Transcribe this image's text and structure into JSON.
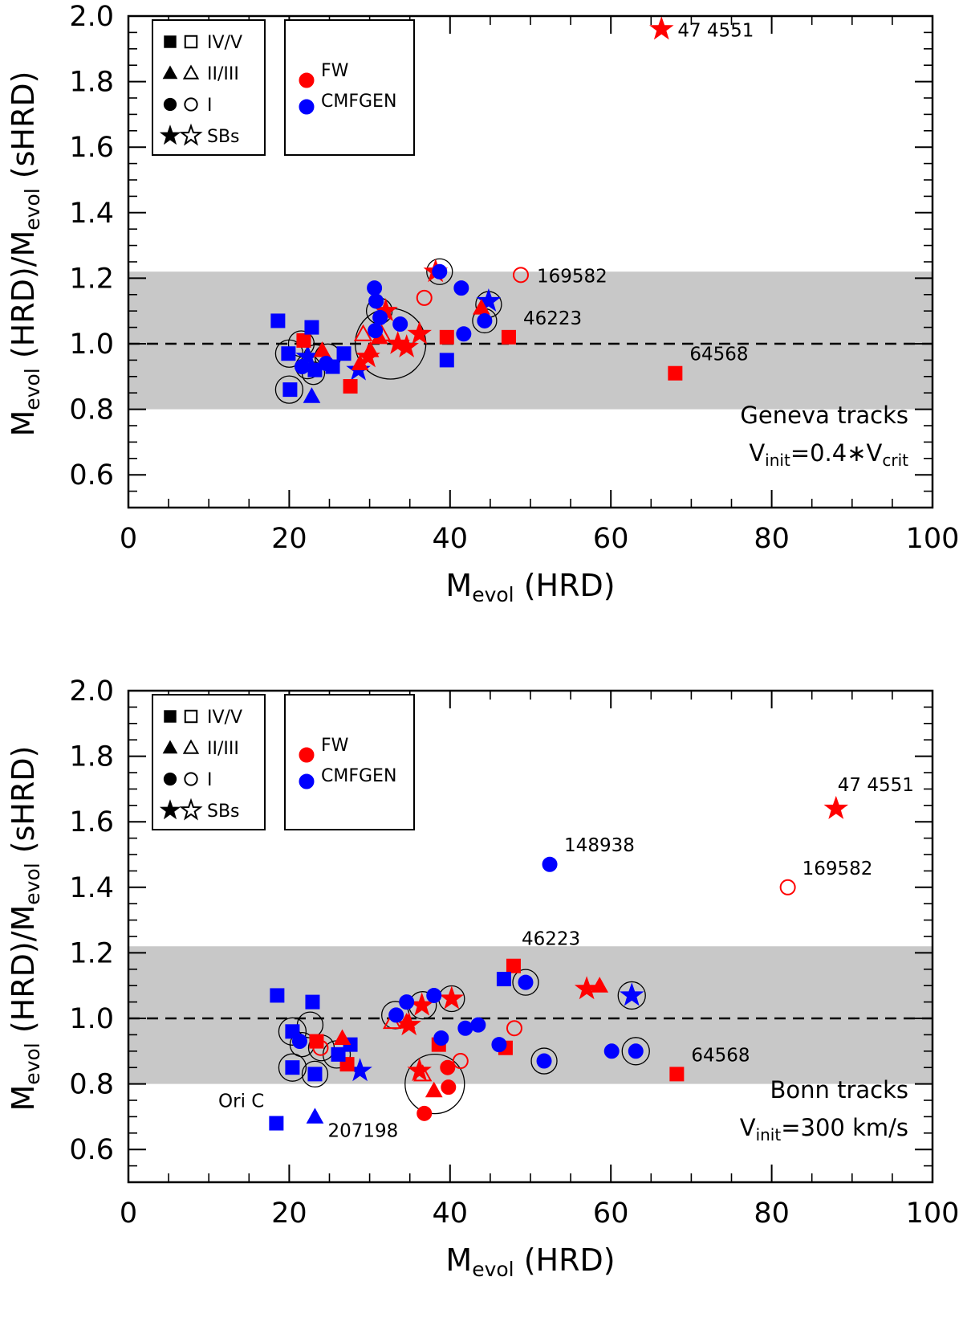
{
  "chart_data": [
    {
      "type": "scatter",
      "track_label": "Geneva tracks",
      "vinit": {
        "lead": "V",
        "sub": "init",
        "mid": "=0.4∗V",
        "sub2": "crit",
        "tail": ""
      },
      "xlabel": {
        "main": "M",
        "sub": "evol",
        "rest": " (HRD)"
      },
      "ylabel": {
        "m1": "M",
        "s1": "evol",
        "r1": " (HRD)/M",
        "s2": "evol",
        "r2": " (sHRD)"
      },
      "xlim": [
        0,
        100
      ],
      "ylim": [
        0.5,
        2.0
      ],
      "xticks": [
        0,
        20,
        40,
        60,
        80,
        100
      ],
      "yticks": [
        0.6,
        0.8,
        1.0,
        1.2,
        1.4,
        1.6,
        1.8,
        2.0
      ],
      "band": [
        0.8,
        1.22
      ],
      "ref_line": 1.0,
      "points": [
        {
          "x": 66.3,
          "y": 1.96,
          "c": "red",
          "m": "star",
          "f": true
        },
        {
          "x": 38.2,
          "y": 1.22,
          "c": "red",
          "m": "star",
          "f": true
        },
        {
          "x": 32.0,
          "y": 1.1,
          "c": "red",
          "m": "star",
          "f": true
        },
        {
          "x": 33.5,
          "y": 1.0,
          "c": "red",
          "m": "star",
          "f": true
        },
        {
          "x": 34.6,
          "y": 0.99,
          "c": "red",
          "m": "star",
          "f": true
        },
        {
          "x": 36.2,
          "y": 1.03,
          "c": "red",
          "m": "star",
          "f": true
        },
        {
          "x": 29.8,
          "y": 0.96,
          "c": "red",
          "m": "star",
          "f": true
        },
        {
          "x": 44.8,
          "y": 1.13,
          "c": "blue",
          "m": "star",
          "f": true
        },
        {
          "x": 28.6,
          "y": 0.92,
          "c": "blue",
          "m": "star",
          "f": true
        },
        {
          "x": 22.3,
          "y": 0.96,
          "c": "blue",
          "m": "star",
          "f": true
        },
        {
          "x": 47.3,
          "y": 1.02,
          "c": "red",
          "m": "square",
          "f": true
        },
        {
          "x": 68.0,
          "y": 0.91,
          "c": "red",
          "m": "square",
          "f": true
        },
        {
          "x": 39.6,
          "y": 1.02,
          "c": "red",
          "m": "square",
          "f": true
        },
        {
          "x": 27.6,
          "y": 0.87,
          "c": "red",
          "m": "square",
          "f": true
        },
        {
          "x": 21.8,
          "y": 1.01,
          "c": "red",
          "m": "square",
          "f": true
        },
        {
          "x": 18.6,
          "y": 1.07,
          "c": "blue",
          "m": "square",
          "f": true
        },
        {
          "x": 22.8,
          "y": 1.05,
          "c": "blue",
          "m": "square",
          "f": true
        },
        {
          "x": 20.1,
          "y": 0.86,
          "c": "blue",
          "m": "square",
          "f": true
        },
        {
          "x": 39.6,
          "y": 0.95,
          "c": "blue",
          "m": "square",
          "f": true
        },
        {
          "x": 26.8,
          "y": 0.97,
          "c": "blue",
          "m": "square",
          "f": true
        },
        {
          "x": 25.4,
          "y": 0.93,
          "c": "blue",
          "m": "square",
          "f": true
        },
        {
          "x": 19.9,
          "y": 0.97,
          "c": "blue",
          "m": "square",
          "f": true
        },
        {
          "x": 23.2,
          "y": 0.92,
          "c": "blue",
          "m": "square",
          "f": true
        },
        {
          "x": 22.8,
          "y": 0.84,
          "c": "blue",
          "m": "triangle",
          "f": true
        },
        {
          "x": 24.1,
          "y": 0.98,
          "c": "red",
          "m": "triangle",
          "f": true
        },
        {
          "x": 31.2,
          "y": 1.02,
          "c": "red",
          "m": "triangle",
          "f": true
        },
        {
          "x": 43.9,
          "y": 1.11,
          "c": "red",
          "m": "triangle",
          "f": true
        },
        {
          "x": 28.8,
          "y": 0.94,
          "c": "red",
          "m": "triangle",
          "f": true
        },
        {
          "x": 30.1,
          "y": 0.98,
          "c": "red",
          "m": "triangle",
          "f": true
        },
        {
          "x": 31.5,
          "y": 1.03,
          "c": "red",
          "m": "triangle",
          "f": false
        },
        {
          "x": 29.2,
          "y": 1.03,
          "c": "red",
          "m": "triangle",
          "f": false
        },
        {
          "x": 48.8,
          "y": 1.21,
          "c": "red",
          "m": "circle",
          "f": false
        },
        {
          "x": 36.8,
          "y": 1.14,
          "c": "red",
          "m": "circle",
          "f": false
        },
        {
          "x": 30.6,
          "y": 1.17,
          "c": "blue",
          "m": "circle",
          "f": true
        },
        {
          "x": 30.8,
          "y": 1.13,
          "c": "blue",
          "m": "circle",
          "f": true
        },
        {
          "x": 31.3,
          "y": 1.08,
          "c": "blue",
          "m": "circle",
          "f": true
        },
        {
          "x": 38.7,
          "y": 1.22,
          "c": "blue",
          "m": "circle",
          "f": true
        },
        {
          "x": 41.4,
          "y": 1.17,
          "c": "blue",
          "m": "circle",
          "f": true
        },
        {
          "x": 41.7,
          "y": 1.03,
          "c": "blue",
          "m": "circle",
          "f": true
        },
        {
          "x": 44.3,
          "y": 1.07,
          "c": "blue",
          "m": "circle",
          "f": true
        },
        {
          "x": 30.7,
          "y": 1.04,
          "c": "blue",
          "m": "circle",
          "f": true
        },
        {
          "x": 33.8,
          "y": 1.06,
          "c": "blue",
          "m": "circle",
          "f": true
        },
        {
          "x": 24.6,
          "y": 0.94,
          "c": "blue",
          "m": "circle",
          "f": true
        },
        {
          "x": 21.6,
          "y": 0.93,
          "c": "blue",
          "m": "circle",
          "f": true
        }
      ],
      "rings": [
        {
          "x": 20.0,
          "y": 0.97,
          "r": 17
        },
        {
          "x": 21.5,
          "y": 1.0,
          "r": 16
        },
        {
          "x": 23.3,
          "y": 0.96,
          "r": 15
        },
        {
          "x": 22.3,
          "y": 0.93,
          "r": 15
        },
        {
          "x": 24.8,
          "y": 0.96,
          "r": 16
        },
        {
          "x": 23.0,
          "y": 0.91,
          "r": 14
        },
        {
          "x": 20.0,
          "y": 0.86,
          "r": 17
        },
        {
          "x": 31.2,
          "y": 1.1,
          "r": 16
        },
        {
          "x": 32.6,
          "y": 1.0,
          "r": 44
        },
        {
          "x": 38.7,
          "y": 1.22,
          "r": 16
        },
        {
          "x": 44.8,
          "y": 1.12,
          "r": 16
        },
        {
          "x": 44.3,
          "y": 1.07,
          "r": 15
        }
      ],
      "labels": [
        {
          "x": 66.3,
          "y": 1.96,
          "text": "47 4551",
          "pos": "right"
        },
        {
          "x": 48.8,
          "y": 1.21,
          "text": "169582",
          "pos": "right"
        },
        {
          "x": 47.3,
          "y": 1.02,
          "text": "46223",
          "pos": "upright"
        },
        {
          "x": 68.0,
          "y": 0.91,
          "text": "64568",
          "pos": "upright"
        }
      ]
    },
    {
      "type": "scatter",
      "track_label": "Bonn tracks",
      "vinit": {
        "lead": "V",
        "sub": "init",
        "mid": "=300 km/s",
        "sub2": "",
        "tail": ""
      },
      "xlabel": {
        "main": "M",
        "sub": "evol",
        "rest": " (HRD)"
      },
      "ylabel": {
        "m1": "M",
        "s1": "evol",
        "r1": " (HRD)/M",
        "s2": "evol",
        "r2": " (sHRD)"
      },
      "xlim": [
        0,
        100
      ],
      "ylim": [
        0.5,
        2.0
      ],
      "xticks": [
        0,
        20,
        40,
        60,
        80,
        100
      ],
      "yticks": [
        0.6,
        0.8,
        1.0,
        1.2,
        1.4,
        1.6,
        1.8,
        2.0
      ],
      "band": [
        0.8,
        1.22
      ],
      "ref_line": 1.0,
      "points": [
        {
          "x": 88.0,
          "y": 1.64,
          "c": "red",
          "m": "star",
          "f": true
        },
        {
          "x": 57.0,
          "y": 1.09,
          "c": "red",
          "m": "star",
          "f": true
        },
        {
          "x": 40.2,
          "y": 1.06,
          "c": "red",
          "m": "star",
          "f": true
        },
        {
          "x": 36.5,
          "y": 1.04,
          "c": "red",
          "m": "star",
          "f": true
        },
        {
          "x": 34.9,
          "y": 0.98,
          "c": "red",
          "m": "star",
          "f": true
        },
        {
          "x": 36.2,
          "y": 0.84,
          "c": "red",
          "m": "star",
          "f": true
        },
        {
          "x": 62.6,
          "y": 1.07,
          "c": "blue",
          "m": "star",
          "f": true
        },
        {
          "x": 28.8,
          "y": 0.84,
          "c": "blue",
          "m": "star",
          "f": true
        },
        {
          "x": 47.9,
          "y": 1.16,
          "c": "red",
          "m": "square",
          "f": true
        },
        {
          "x": 68.2,
          "y": 0.83,
          "c": "red",
          "m": "square",
          "f": true
        },
        {
          "x": 38.6,
          "y": 0.92,
          "c": "red",
          "m": "square",
          "f": true
        },
        {
          "x": 46.9,
          "y": 0.91,
          "c": "red",
          "m": "square",
          "f": true
        },
        {
          "x": 23.4,
          "y": 0.93,
          "c": "red",
          "m": "square",
          "f": true
        },
        {
          "x": 27.2,
          "y": 0.86,
          "c": "red",
          "m": "square",
          "f": true
        },
        {
          "x": 18.5,
          "y": 1.07,
          "c": "blue",
          "m": "square",
          "f": true
        },
        {
          "x": 22.9,
          "y": 1.05,
          "c": "blue",
          "m": "square",
          "f": true
        },
        {
          "x": 46.7,
          "y": 1.12,
          "c": "blue",
          "m": "square",
          "f": true
        },
        {
          "x": 20.4,
          "y": 0.96,
          "c": "blue",
          "m": "square",
          "f": true
        },
        {
          "x": 27.6,
          "y": 0.92,
          "c": "blue",
          "m": "square",
          "f": true
        },
        {
          "x": 26.1,
          "y": 0.89,
          "c": "blue",
          "m": "square",
          "f": true
        },
        {
          "x": 20.4,
          "y": 0.85,
          "c": "blue",
          "m": "square",
          "f": true
        },
        {
          "x": 23.2,
          "y": 0.83,
          "c": "blue",
          "m": "square",
          "f": true
        },
        {
          "x": 18.4,
          "y": 0.68,
          "c": "blue",
          "m": "square",
          "f": true
        },
        {
          "x": 23.2,
          "y": 0.7,
          "c": "blue",
          "m": "triangle",
          "f": true
        },
        {
          "x": 58.6,
          "y": 1.1,
          "c": "red",
          "m": "triangle",
          "f": true
        },
        {
          "x": 26.6,
          "y": 0.94,
          "c": "red",
          "m": "triangle",
          "f": true
        },
        {
          "x": 38.0,
          "y": 0.78,
          "c": "red",
          "m": "triangle",
          "f": true
        },
        {
          "x": 34.6,
          "y": 0.99,
          "c": "red",
          "m": "triangle",
          "f": true
        },
        {
          "x": 36.6,
          "y": 0.83,
          "c": "red",
          "m": "triangle",
          "f": false
        },
        {
          "x": 32.8,
          "y": 0.99,
          "c": "red",
          "m": "triangle",
          "f": false
        },
        {
          "x": 82.0,
          "y": 1.4,
          "c": "red",
          "m": "circle",
          "f": false
        },
        {
          "x": 48.0,
          "y": 0.97,
          "c": "red",
          "m": "circle",
          "f": false
        },
        {
          "x": 41.3,
          "y": 0.87,
          "c": "red",
          "m": "circle",
          "f": false
        },
        {
          "x": 23.9,
          "y": 0.91,
          "c": "red",
          "m": "circle",
          "f": false
        },
        {
          "x": 36.8,
          "y": 0.71,
          "c": "red",
          "m": "circle",
          "f": true
        },
        {
          "x": 39.7,
          "y": 0.85,
          "c": "red",
          "m": "circle",
          "f": true
        },
        {
          "x": 39.8,
          "y": 0.79,
          "c": "red",
          "m": "circle",
          "f": true
        },
        {
          "x": 52.4,
          "y": 1.47,
          "c": "blue",
          "m": "circle",
          "f": true
        },
        {
          "x": 49.4,
          "y": 1.11,
          "c": "blue",
          "m": "circle",
          "f": true
        },
        {
          "x": 38.0,
          "y": 1.07,
          "c": "blue",
          "m": "circle",
          "f": true
        },
        {
          "x": 34.6,
          "y": 1.05,
          "c": "blue",
          "m": "circle",
          "f": true
        },
        {
          "x": 38.9,
          "y": 0.94,
          "c": "blue",
          "m": "circle",
          "f": true
        },
        {
          "x": 41.9,
          "y": 0.97,
          "c": "blue",
          "m": "circle",
          "f": true
        },
        {
          "x": 43.5,
          "y": 0.98,
          "c": "blue",
          "m": "circle",
          "f": true
        },
        {
          "x": 46.1,
          "y": 0.92,
          "c": "blue",
          "m": "circle",
          "f": true
        },
        {
          "x": 51.7,
          "y": 0.87,
          "c": "blue",
          "m": "circle",
          "f": true
        },
        {
          "x": 60.1,
          "y": 0.9,
          "c": "blue",
          "m": "circle",
          "f": true
        },
        {
          "x": 63.1,
          "y": 0.9,
          "c": "blue",
          "m": "circle",
          "f": true
        },
        {
          "x": 21.3,
          "y": 0.93,
          "c": "blue",
          "m": "circle",
          "f": true
        },
        {
          "x": 33.3,
          "y": 1.01,
          "c": "blue",
          "m": "circle",
          "f": true
        }
      ],
      "rings": [
        {
          "x": 20.4,
          "y": 0.96,
          "r": 17
        },
        {
          "x": 22.6,
          "y": 0.98,
          "r": 16
        },
        {
          "x": 21.6,
          "y": 0.92,
          "r": 15
        },
        {
          "x": 24.0,
          "y": 0.91,
          "r": 16
        },
        {
          "x": 25.9,
          "y": 0.89,
          "r": 17
        },
        {
          "x": 20.4,
          "y": 0.85,
          "r": 17
        },
        {
          "x": 23.2,
          "y": 0.83,
          "r": 16
        },
        {
          "x": 33.2,
          "y": 1.01,
          "r": 17
        },
        {
          "x": 36.6,
          "y": 1.04,
          "r": 17
        },
        {
          "x": 40.2,
          "y": 1.06,
          "r": 16
        },
        {
          "x": 49.4,
          "y": 1.11,
          "r": 16
        },
        {
          "x": 62.6,
          "y": 1.07,
          "r": 17
        },
        {
          "x": 51.7,
          "y": 0.87,
          "r": 16
        },
        {
          "x": 63.1,
          "y": 0.9,
          "r": 17
        },
        {
          "x": 38.1,
          "y": 0.8,
          "r": 37
        }
      ],
      "labels": [
        {
          "x": 88.0,
          "y": 1.64,
          "text": "47 4551",
          "pos": "up"
        },
        {
          "x": 52.4,
          "y": 1.47,
          "text": "148938",
          "pos": "upright"
        },
        {
          "x": 82.0,
          "y": 1.4,
          "text": "169582",
          "pos": "upright"
        },
        {
          "x": 47.9,
          "y": 1.16,
          "text": "46223",
          "pos": "upabove"
        },
        {
          "x": 68.2,
          "y": 0.83,
          "text": "64568",
          "pos": "upright"
        },
        {
          "x": 18.4,
          "y": 0.68,
          "text": "Ori C",
          "pos": "upleft"
        },
        {
          "x": 23.2,
          "y": 0.7,
          "text": "207198",
          "pos": "downright"
        }
      ]
    }
  ],
  "legend": {
    "shapes": [
      {
        "marker": "square",
        "label": "IV/V"
      },
      {
        "marker": "triangle",
        "label": "II/III"
      },
      {
        "marker": "circle",
        "label": "I"
      },
      {
        "marker": "star",
        "label": "SBs"
      }
    ],
    "colors": [
      {
        "color": "red",
        "label": "FW"
      },
      {
        "color": "blue",
        "label": "CMFGEN"
      }
    ]
  },
  "colors": {
    "red": "#ff0000",
    "blue": "#0000ff",
    "band": "#c8c8c8"
  }
}
